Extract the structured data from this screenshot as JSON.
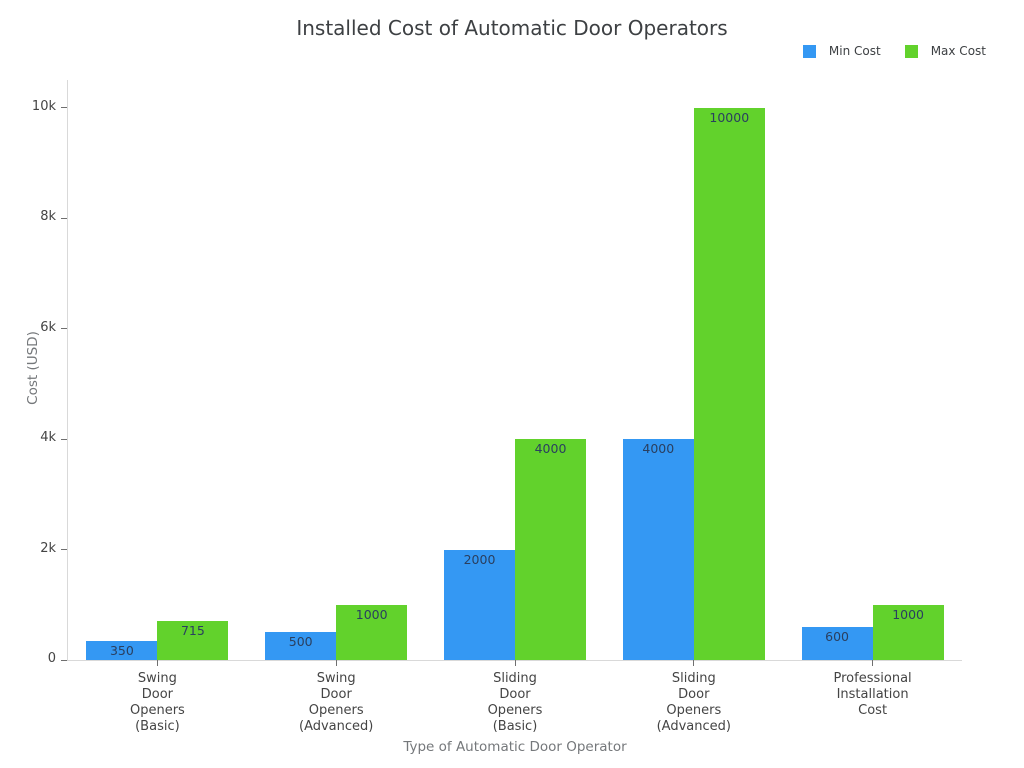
{
  "title": "Installed Cost of Automatic Door Operators",
  "chart_data": {
    "type": "bar",
    "title": "Installed Cost of Automatic Door Operators",
    "xlabel": "Type of Automatic Door Operator",
    "ylabel": "Cost (USD)",
    "categories": [
      "Swing Door Openers (Basic)",
      "Swing Door Openers (Advanced)",
      "Sliding Door Openers (Basic)",
      "Sliding Door Openers (Advanced)",
      "Professional Installation Cost"
    ],
    "category_display_lines": [
      [
        "Swing",
        "Door",
        "Openers",
        "(Basic)"
      ],
      [
        "Swing",
        "Door",
        "Openers",
        "(Advanced)"
      ],
      [
        "Sliding",
        "Door",
        "Openers",
        "(Basic)"
      ],
      [
        "Sliding",
        "Door",
        "Openers",
        "(Advanced)"
      ],
      [
        "Professional",
        "Installation",
        "Cost"
      ]
    ],
    "series": [
      {
        "name": "Min Cost",
        "color": "#3498f3",
        "values": [
          350,
          500,
          2000,
          4000,
          600
        ]
      },
      {
        "name": "Max Cost",
        "color": "#62d22c",
        "values": [
          715,
          1000,
          4000,
          10000,
          1000
        ]
      }
    ],
    "bar_value_labels": [
      "350",
      "715",
      "500",
      "1000",
      "2000",
      "4000",
      "4000",
      "10000",
      "600",
      "1000"
    ],
    "bar_value_label_position": "inside-top",
    "ylim": [
      0,
      10500
    ],
    "yticks": [
      {
        "value": 0,
        "label": "0"
      },
      {
        "value": 2000,
        "label": "2k"
      },
      {
        "value": 4000,
        "label": "4k"
      },
      {
        "value": 6000,
        "label": "6k"
      },
      {
        "value": 8000,
        "label": "8k"
      },
      {
        "value": 10000,
        "label": "10k"
      }
    ],
    "grid": false,
    "legend_position": "top-right"
  },
  "style": {
    "background": "#ffffff",
    "axis_line_color": "#d9d9d9",
    "tick_mark_color": "#6f6f6f",
    "title_color": "#3d4043",
    "axis_title_color": "#75787b",
    "tick_label_color": "#444444",
    "bar_label_color": "#2a3f5f"
  }
}
